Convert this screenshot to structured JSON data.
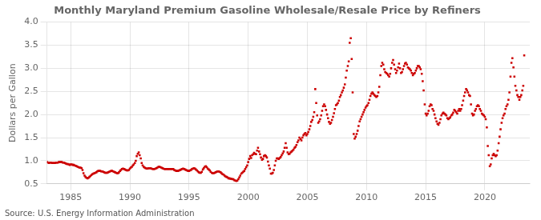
{
  "chart_data": {
    "type": "scatter",
    "title": "Monthly Maryland Premium Gasoline Wholesale/Resale Price by Refiners",
    "y_label": "Dollars per Gallon",
    "annotations": [
      "Source: U.S. Energy Information Administration"
    ],
    "color": "#cc0000",
    "marker": "square",
    "grid": true,
    "xlim": [
      1983.0,
      2023.8
    ],
    "xticks": [
      1985,
      1990,
      1995,
      2000,
      2005,
      2010,
      2015,
      2020
    ],
    "ylim": [
      0.5,
      4.0
    ],
    "yticks": [
      0.5,
      {
        "value": 1.0,
        "label": "1.0"
      },
      1.5,
      {
        "value": 2.0,
        "label": "2.0"
      },
      2.5,
      {
        "value": 3.0,
        "label": "3.0"
      },
      3.5,
      {
        "value": 4.0,
        "label": "4.0"
      }
    ],
    "x": [
      1983.0,
      1983.08,
      1983.17,
      1983.25,
      1983.33,
      1983.42,
      1983.5,
      1983.58,
      1983.67,
      1983.75,
      1983.83,
      1983.92,
      1984.0,
      1984.08,
      1984.17,
      1984.25,
      1984.33,
      1984.42,
      1984.5,
      1984.58,
      1984.67,
      1984.75,
      1984.83,
      1984.92,
      1985.0,
      1985.08,
      1985.17,
      1985.25,
      1985.33,
      1985.42,
      1985.5,
      1985.58,
      1985.67,
      1985.75,
      1985.83,
      1985.92,
      1986.0,
      1986.08,
      1986.17,
      1986.25,
      1986.33,
      1986.42,
      1986.5,
      1986.58,
      1986.67,
      1986.75,
      1986.83,
      1986.92,
      1987.0,
      1987.08,
      1987.17,
      1987.25,
      1987.33,
      1987.42,
      1987.5,
      1987.58,
      1987.67,
      1987.75,
      1987.83,
      1987.92,
      1988.0,
      1988.08,
      1988.17,
      1988.25,
      1988.33,
      1988.42,
      1988.5,
      1988.58,
      1988.67,
      1988.75,
      1988.83,
      1988.92,
      1989.0,
      1989.08,
      1989.17,
      1989.25,
      1989.33,
      1989.42,
      1989.5,
      1989.58,
      1989.67,
      1989.75,
      1989.83,
      1989.92,
      1990.0,
      1990.08,
      1990.17,
      1990.25,
      1990.33,
      1990.42,
      1990.5,
      1990.58,
      1990.67,
      1990.75,
      1990.83,
      1990.92,
      1991.0,
      1991.08,
      1991.17,
      1991.25,
      1991.33,
      1991.42,
      1991.5,
      1991.58,
      1991.67,
      1991.75,
      1991.83,
      1991.92,
      1992.0,
      1992.08,
      1992.17,
      1992.25,
      1992.33,
      1992.42,
      1992.5,
      1992.58,
      1992.67,
      1992.75,
      1992.83,
      1992.92,
      1993.0,
      1993.08,
      1993.17,
      1993.25,
      1993.33,
      1993.42,
      1993.5,
      1993.58,
      1993.67,
      1993.75,
      1993.83,
      1993.92,
      1994.0,
      1994.08,
      1994.17,
      1994.25,
      1994.33,
      1994.42,
      1994.5,
      1994.58,
      1994.67,
      1994.75,
      1994.83,
      1994.92,
      1995.0,
      1995.08,
      1995.17,
      1995.25,
      1995.33,
      1995.42,
      1995.5,
      1995.58,
      1995.67,
      1995.75,
      1995.83,
      1995.92,
      1996.0,
      1996.08,
      1996.17,
      1996.25,
      1996.33,
      1996.42,
      1996.5,
      1996.58,
      1996.67,
      1996.75,
      1996.83,
      1996.92,
      1997.0,
      1997.08,
      1997.17,
      1997.25,
      1997.33,
      1997.42,
      1997.5,
      1997.58,
      1997.67,
      1997.75,
      1997.83,
      1997.92,
      1998.0,
      1998.08,
      1998.17,
      1998.25,
      1998.33,
      1998.42,
      1998.5,
      1998.58,
      1998.67,
      1998.75,
      1998.83,
      1998.92,
      1999.0,
      1999.08,
      1999.17,
      1999.25,
      1999.33,
      1999.42,
      1999.5,
      1999.58,
      1999.67,
      1999.75,
      1999.83,
      1999.92,
      2000.0,
      2000.08,
      2000.17,
      2000.25,
      2000.33,
      2000.42,
      2000.5,
      2000.58,
      2000.67,
      2000.75,
      2000.83,
      2000.92,
      2001.0,
      2001.08,
      2001.17,
      2001.25,
      2001.33,
      2001.42,
      2001.5,
      2001.58,
      2001.67,
      2001.75,
      2001.83,
      2001.92,
      2002.0,
      2002.08,
      2002.17,
      2002.25,
      2002.33,
      2002.42,
      2002.5,
      2002.58,
      2002.67,
      2002.75,
      2002.83,
      2002.92,
      2003.0,
      2003.08,
      2003.17,
      2003.25,
      2003.33,
      2003.42,
      2003.5,
      2003.58,
      2003.67,
      2003.75,
      2003.83,
      2003.92,
      2004.0,
      2004.08,
      2004.17,
      2004.25,
      2004.33,
      2004.42,
      2004.5,
      2004.58,
      2004.67,
      2004.75,
      2004.83,
      2004.92,
      2005.0,
      2005.08,
      2005.17,
      2005.25,
      2005.33,
      2005.42,
      2005.5,
      2005.58,
      2005.67,
      2005.75,
      2005.83,
      2005.92,
      2006.0,
      2006.08,
      2006.17,
      2006.25,
      2006.33,
      2006.42,
      2006.5,
      2006.58,
      2006.67,
      2006.75,
      2006.83,
      2006.92,
      2007.0,
      2007.08,
      2007.17,
      2007.25,
      2007.33,
      2007.42,
      2007.5,
      2007.58,
      2007.67,
      2007.75,
      2007.83,
      2007.92,
      2008.0,
      2008.08,
      2008.17,
      2008.25,
      2008.33,
      2008.42,
      2008.5,
      2008.58,
      2008.67,
      2008.75,
      2008.83,
      2008.92,
      2009.0,
      2009.08,
      2009.17,
      2009.25,
      2009.33,
      2009.42,
      2009.5,
      2009.58,
      2009.67,
      2009.75,
      2009.83,
      2009.92,
      2010.0,
      2010.08,
      2010.17,
      2010.25,
      2010.33,
      2010.42,
      2010.5,
      2010.58,
      2010.67,
      2010.75,
      2010.83,
      2010.92,
      2011.0,
      2011.08,
      2011.17,
      2011.25,
      2011.33,
      2011.42,
      2011.5,
      2011.58,
      2011.67,
      2011.75,
      2011.83,
      2011.92,
      2012.0,
      2012.08,
      2012.17,
      2012.25,
      2012.33,
      2012.42,
      2012.5,
      2012.58,
      2012.67,
      2012.75,
      2012.83,
      2012.92,
      2013.0,
      2013.08,
      2013.17,
      2013.25,
      2013.33,
      2013.42,
      2013.5,
      2013.58,
      2013.67,
      2013.75,
      2013.83,
      2013.92,
      2014.0,
      2014.08,
      2014.17,
      2014.25,
      2014.33,
      2014.42,
      2014.5,
      2014.58,
      2014.67,
      2014.75,
      2014.83,
      2014.92,
      2015.0,
      2015.08,
      2015.17,
      2015.25,
      2015.33,
      2015.42,
      2015.5,
      2015.58,
      2015.67,
      2015.75,
      2015.83,
      2015.92,
      2016.0,
      2016.08,
      2016.17,
      2016.25,
      2016.33,
      2016.42,
      2016.5,
      2016.58,
      2016.67,
      2016.75,
      2016.83,
      2016.92,
      2017.0,
      2017.08,
      2017.17,
      2017.25,
      2017.33,
      2017.42,
      2017.5,
      2017.58,
      2017.67,
      2017.75,
      2017.83,
      2017.92,
      2018.0,
      2018.08,
      2018.17,
      2018.25,
      2018.33,
      2018.42,
      2018.5,
      2018.58,
      2018.67,
      2018.75,
      2018.83,
      2018.92,
      2019.0,
      2019.08,
      2019.17,
      2019.25,
      2019.33,
      2019.42,
      2019.5,
      2019.58,
      2019.67,
      2019.75,
      2019.83,
      2019.92,
      2020.0,
      2020.08,
      2020.17,
      2020.25,
      2020.33,
      2020.42,
      2020.5,
      2020.58,
      2020.67,
      2020.75,
      2020.83,
      2020.92,
      2021.0,
      2021.08,
      2021.17,
      2021.25,
      2021.33,
      2021.42,
      2021.5,
      2021.58,
      2021.67,
      2021.75,
      2021.83,
      2021.92,
      2022.0,
      2022.08,
      2022.17,
      2022.25,
      2022.33,
      2022.42,
      2022.5,
      2022.58,
      2022.67,
      2022.75,
      2022.83,
      2022.92,
      2023.0,
      2023.08,
      2023.17,
      2023.25,
      2023.33
    ],
    "values": [
      0.97,
      0.96,
      0.95,
      0.96,
      0.96,
      0.95,
      0.95,
      0.95,
      0.95,
      0.96,
      0.96,
      0.96,
      0.97,
      0.97,
      0.97,
      0.97,
      0.96,
      0.96,
      0.95,
      0.94,
      0.93,
      0.93,
      0.92,
      0.91,
      0.92,
      0.92,
      0.91,
      0.91,
      0.9,
      0.89,
      0.88,
      0.87,
      0.86,
      0.85,
      0.85,
      0.84,
      0.8,
      0.73,
      0.68,
      0.65,
      0.63,
      0.62,
      0.63,
      0.65,
      0.67,
      0.69,
      0.71,
      0.72,
      0.73,
      0.74,
      0.75,
      0.77,
      0.78,
      0.78,
      0.78,
      0.77,
      0.77,
      0.76,
      0.75,
      0.74,
      0.74,
      0.74,
      0.75,
      0.76,
      0.77,
      0.78,
      0.78,
      0.77,
      0.76,
      0.75,
      0.74,
      0.73,
      0.73,
      0.75,
      0.78,
      0.8,
      0.82,
      0.83,
      0.82,
      0.81,
      0.8,
      0.79,
      0.79,
      0.8,
      0.83,
      0.85,
      0.87,
      0.9,
      0.92,
      0.95,
      1.0,
      1.1,
      1.15,
      1.18,
      1.12,
      1.05,
      0.95,
      0.9,
      0.87,
      0.85,
      0.84,
      0.83,
      0.83,
      0.84,
      0.84,
      0.84,
      0.83,
      0.82,
      0.82,
      0.82,
      0.83,
      0.84,
      0.85,
      0.87,
      0.87,
      0.86,
      0.85,
      0.84,
      0.83,
      0.82,
      0.82,
      0.82,
      0.82,
      0.82,
      0.82,
      0.82,
      0.82,
      0.82,
      0.82,
      0.8,
      0.79,
      0.78,
      0.78,
      0.78,
      0.79,
      0.8,
      0.81,
      0.82,
      0.83,
      0.82,
      0.81,
      0.8,
      0.79,
      0.78,
      0.78,
      0.79,
      0.8,
      0.82,
      0.83,
      0.84,
      0.83,
      0.81,
      0.79,
      0.77,
      0.75,
      0.74,
      0.74,
      0.76,
      0.81,
      0.84,
      0.87,
      0.88,
      0.86,
      0.83,
      0.81,
      0.79,
      0.76,
      0.74,
      0.73,
      0.73,
      0.74,
      0.75,
      0.76,
      0.77,
      0.77,
      0.76,
      0.75,
      0.73,
      0.71,
      0.7,
      0.68,
      0.66,
      0.65,
      0.64,
      0.62,
      0.62,
      0.61,
      0.61,
      0.6,
      0.6,
      0.58,
      0.57,
      0.56,
      0.57,
      0.6,
      0.64,
      0.68,
      0.72,
      0.74,
      0.76,
      0.78,
      0.82,
      0.86,
      0.9,
      0.97,
      1.04,
      1.1,
      1.06,
      1.12,
      1.14,
      1.17,
      1.15,
      1.14,
      1.22,
      1.28,
      1.2,
      1.14,
      1.07,
      1.02,
      1.04,
      1.1,
      1.12,
      1.1,
      1.07,
      0.98,
      0.9,
      0.83,
      0.72,
      0.72,
      0.74,
      0.8,
      0.9,
      1.0,
      1.05,
      1.05,
      1.04,
      1.06,
      1.08,
      1.12,
      1.16,
      1.2,
      1.28,
      1.38,
      1.28,
      1.18,
      1.14,
      1.15,
      1.18,
      1.2,
      1.22,
      1.24,
      1.28,
      1.3,
      1.34,
      1.4,
      1.44,
      1.5,
      1.47,
      1.44,
      1.5,
      1.55,
      1.58,
      1.6,
      1.55,
      1.58,
      1.62,
      1.68,
      1.75,
      1.84,
      1.88,
      1.95,
      2.05,
      2.55,
      2.25,
      1.98,
      1.82,
      1.85,
      1.9,
      1.98,
      2.08,
      2.18,
      2.22,
      2.18,
      2.1,
      2.0,
      1.92,
      1.84,
      1.8,
      1.82,
      1.88,
      1.95,
      2.03,
      2.12,
      2.2,
      2.22,
      2.25,
      2.3,
      2.38,
      2.42,
      2.48,
      2.52,
      2.58,
      2.65,
      2.8,
      2.95,
      3.05,
      3.15,
      3.55,
      3.65,
      3.2,
      2.48,
      1.58,
      1.48,
      1.52,
      1.58,
      1.65,
      1.75,
      1.85,
      1.9,
      1.95,
      2.0,
      2.05,
      2.1,
      2.15,
      2.18,
      2.2,
      2.25,
      2.32,
      2.4,
      2.45,
      2.48,
      2.45,
      2.42,
      2.4,
      2.38,
      2.4,
      2.48,
      2.6,
      2.85,
      3.05,
      3.12,
      3.08,
      2.98,
      2.92,
      2.9,
      2.88,
      2.85,
      2.82,
      2.88,
      3.0,
      3.12,
      3.18,
      3.08,
      2.98,
      2.9,
      2.95,
      3.02,
      3.1,
      3.0,
      2.9,
      2.92,
      2.98,
      3.05,
      3.1,
      3.12,
      3.08,
      3.02,
      3.0,
      2.98,
      2.95,
      2.9,
      2.85,
      2.88,
      2.9,
      2.95,
      3.0,
      3.05,
      3.05,
      3.02,
      2.98,
      2.88,
      2.72,
      2.52,
      2.22,
      2.02,
      1.98,
      2.02,
      2.08,
      2.18,
      2.22,
      2.2,
      2.12,
      2.08,
      2.0,
      1.92,
      1.85,
      1.8,
      1.78,
      1.82,
      1.9,
      1.98,
      2.02,
      2.04,
      2.02,
      2.0,
      1.98,
      1.92,
      1.9,
      1.92,
      1.94,
      1.98,
      2.0,
      2.04,
      2.1,
      2.08,
      2.05,
      2.02,
      2.08,
      2.12,
      2.08,
      2.12,
      2.2,
      2.3,
      2.4,
      2.48,
      2.55,
      2.52,
      2.48,
      2.42,
      2.4,
      2.22,
      2.02,
      1.98,
      2.0,
      2.08,
      2.12,
      2.18,
      2.2,
      2.18,
      2.12,
      2.08,
      2.02,
      2.0,
      1.98,
      1.95,
      1.9,
      1.72,
      1.32,
      1.12,
      0.88,
      0.92,
      1.05,
      1.12,
      1.15,
      1.12,
      1.1,
      1.12,
      1.22,
      1.38,
      1.52,
      1.68,
      1.82,
      1.92,
      1.98,
      2.02,
      2.12,
      2.18,
      2.22,
      2.32,
      2.48,
      2.82,
      3.12,
      3.22,
      3.02,
      2.82,
      2.62,
      2.52,
      2.42,
      2.38,
      2.32,
      2.38,
      2.42,
      2.52,
      2.62,
      3.28
    ]
  }
}
